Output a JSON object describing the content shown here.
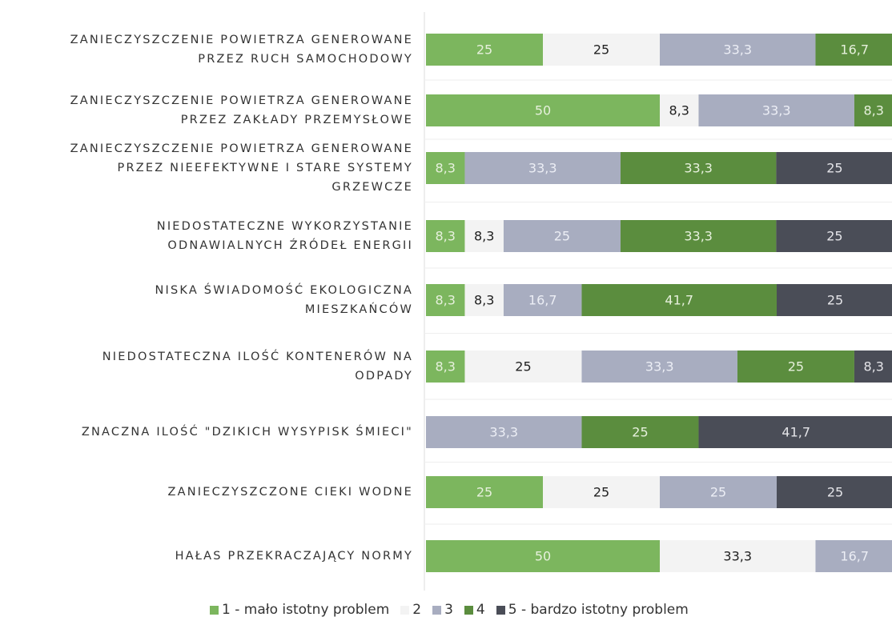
{
  "chart_data": {
    "type": "stacked_bar_horizontal",
    "categories": [
      "ZANIECZYSZCZENIE POWIETRZA GENEROWANE\nPRZEZ RUCH SAMOCHODOWY",
      "ZANIECZYSZCZENIE POWIETRZA GENEROWANE\nPRZEZ ZAKŁADY PRZEMYSŁOWE",
      "ZANIECZYSZCZENIE POWIETRZA GENEROWANE\nPRZEZ NIEEFEKTYWNE I STARE SYSTEMY\nGRZEWCZE",
      "NIEDOSTATECZNE WYKORZYSTANIE\nODNAWIALNYCH ŹRÓDEŁ ENERGII",
      "NISKA ŚWIADOMOŚĆ EKOLOGICZNA\nMIESZKAŃCÓW",
      "NIEDOSTATECZNA ILOŚĆ KONTENERÓW NA\nODPADY",
      "ZNACZNA ILOŚĆ \"DZIKICH WYSYPISK ŚMIECI\"",
      "ZANIECZYSZCZONE CIEKI WODNE",
      "HAŁAS PRZEKRACZAJĄCY NORMY"
    ],
    "series": [
      {
        "name": "1 - mało istotny problem",
        "color": "#7cb65e",
        "label_color": "#e6f0dc",
        "values": [
          25,
          50,
          8.3,
          8.3,
          8.3,
          8.3,
          null,
          25,
          50
        ],
        "value_labels": [
          "25",
          "50",
          "8,3",
          "8,3",
          "8,3",
          "8,3",
          null,
          "25",
          "50"
        ]
      },
      {
        "name": "2",
        "color": "#f3f3f3",
        "label_color": "#222222",
        "values": [
          25,
          8.3,
          null,
          8.3,
          8.3,
          25,
          null,
          25,
          33.3
        ],
        "value_labels": [
          "25",
          "8,3",
          null,
          "8,3",
          "8,3",
          "25",
          null,
          "25",
          "33,3"
        ]
      },
      {
        "name": "3",
        "color": "#a8adc0",
        "label_color": "#eceef5",
        "values": [
          33.3,
          33.3,
          33.3,
          25,
          16.7,
          33.3,
          33.3,
          25,
          16.7
        ],
        "value_labels": [
          "33,3",
          "33,3",
          "33,3",
          "25",
          "16,7",
          "33,3",
          "33,3",
          "25",
          "16,7"
        ]
      },
      {
        "name": "4",
        "color": "#5b8d3e",
        "label_color": "#e6f0dc",
        "values": [
          16.7,
          8.3,
          33.3,
          33.3,
          41.7,
          25,
          25,
          null,
          null
        ],
        "value_labels": [
          "16,7",
          "8,3",
          "33,3",
          "33,3",
          "41,7",
          "25",
          "25",
          null,
          null
        ]
      },
      {
        "name": "5 - bardzo istotny problem",
        "color": "#4a4d57",
        "label_color": "#e4e4e8",
        "values": [
          null,
          null,
          25,
          25,
          25,
          8.3,
          41.7,
          25,
          null
        ],
        "value_labels": [
          null,
          null,
          "25",
          "25",
          "25",
          "8,3",
          "41,7",
          "25",
          null
        ]
      }
    ]
  }
}
